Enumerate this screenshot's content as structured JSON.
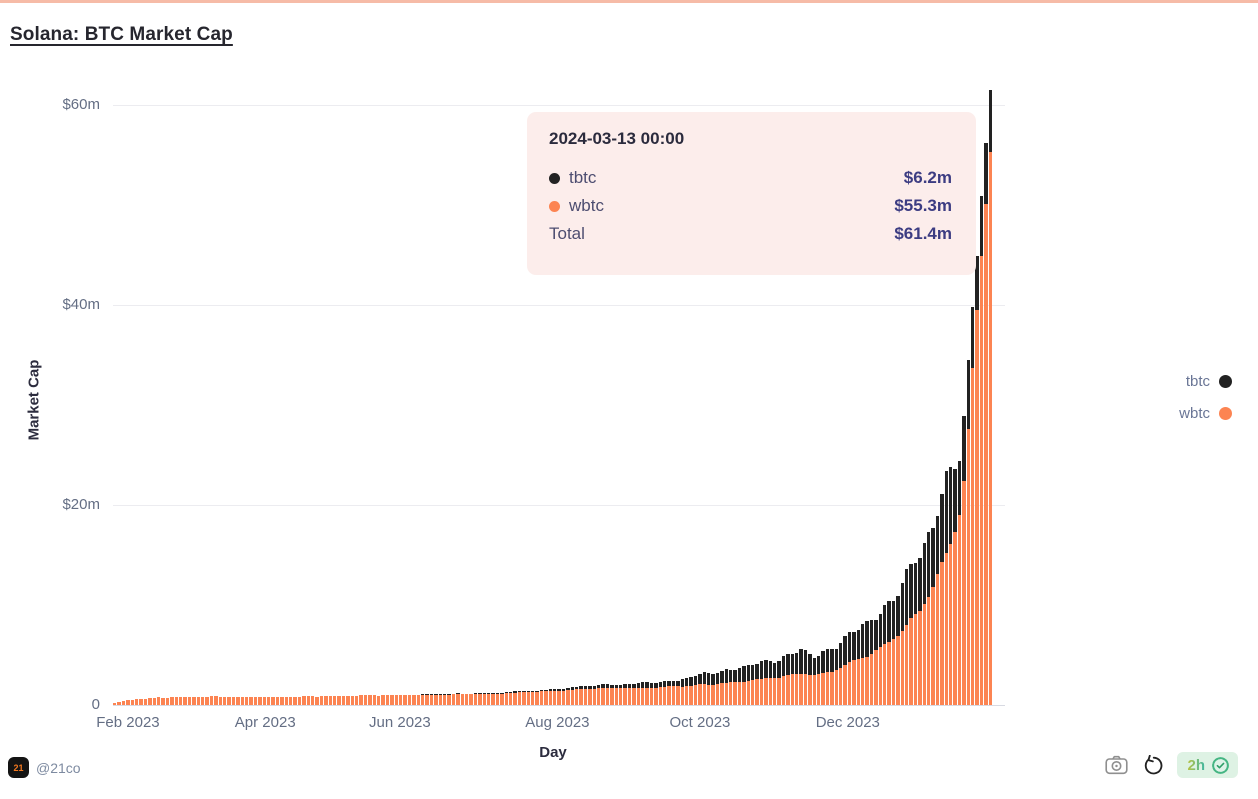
{
  "title": "Solana: BTC Market Cap",
  "chart_data": {
    "type": "bar",
    "stacked": true,
    "title": "Solana: BTC Market Cap",
    "xlabel": "Day",
    "ylabel": "Market Cap",
    "ylim": [
      0,
      60
    ],
    "grid": true,
    "legend_position": "right",
    "y_ticks": [
      {
        "label": "$60m",
        "value": 60
      },
      {
        "label": "$40m",
        "value": 40
      },
      {
        "label": "$20m",
        "value": 20
      },
      {
        "label": "0",
        "value": 0
      }
    ],
    "x_ticks": [
      {
        "label": "Feb 2023",
        "f": 0.017
      },
      {
        "label": "Apr 2023",
        "f": 0.173
      },
      {
        "label": "Jun 2023",
        "f": 0.326
      },
      {
        "label": "Aug 2023",
        "f": 0.505
      },
      {
        "label": "Oct 2023",
        "f": 0.667
      },
      {
        "label": "Dec 2023",
        "f": 0.835
      }
    ],
    "series": [
      {
        "name": "tbtc",
        "color": "#222222"
      },
      {
        "name": "wbtc",
        "color": "#fc8452"
      }
    ],
    "unit": "$m market cap",
    "anchors": [
      {
        "f": 0.0,
        "date": "2023-01-28",
        "wbtc": 0.25,
        "tbtc": 0
      },
      {
        "f": 0.02,
        "date": "2023-02-01",
        "wbtc": 0.55,
        "tbtc": 0
      },
      {
        "f": 0.05,
        "date": "2023-02-12",
        "wbtc": 0.75,
        "tbtc": 0
      },
      {
        "f": 0.1,
        "date": "2023-03-05",
        "wbtc": 0.85,
        "tbtc": 0
      },
      {
        "f": 0.17,
        "date": "2023-04-01",
        "wbtc": 0.8,
        "tbtc": 0
      },
      {
        "f": 0.22,
        "date": "2023-04-20",
        "wbtc": 0.85,
        "tbtc": 0
      },
      {
        "f": 0.28,
        "date": "2023-05-15",
        "wbtc": 0.95,
        "tbtc": 0
      },
      {
        "f": 0.33,
        "date": "2023-06-01",
        "wbtc": 1.0,
        "tbtc": 0
      },
      {
        "f": 0.38,
        "date": "2023-06-20",
        "wbtc": 1.05,
        "tbtc": 0.05
      },
      {
        "f": 0.44,
        "date": "2023-07-12",
        "wbtc": 1.15,
        "tbtc": 0.1
      },
      {
        "f": 0.5,
        "date": "2023-08-01",
        "wbtc": 1.4,
        "tbtc": 0.15
      },
      {
        "f": 0.55,
        "date": "2023-08-18",
        "wbtc": 1.7,
        "tbtc": 0.3
      },
      {
        "f": 0.6,
        "date": "2023-09-05",
        "wbtc": 1.7,
        "tbtc": 0.45
      },
      {
        "f": 0.64,
        "date": "2023-09-20",
        "wbtc": 1.85,
        "tbtc": 0.6
      },
      {
        "f": 0.667,
        "date": "2023-10-01",
        "wbtc": 2.0,
        "tbtc": 1.0
      },
      {
        "f": 0.7,
        "date": "2023-10-12",
        "wbtc": 2.2,
        "tbtc": 1.3
      },
      {
        "f": 0.73,
        "date": "2023-10-24",
        "wbtc": 2.5,
        "tbtc": 1.5
      },
      {
        "f": 0.76,
        "date": "2023-11-01",
        "wbtc": 2.8,
        "tbtc": 1.9
      },
      {
        "f": 0.785,
        "date": "2023-11-10",
        "wbtc": 3.2,
        "tbtc": 2.3
      },
      {
        "f": 0.8,
        "date": "2023-11-16",
        "wbtc": 3.0,
        "tbtc": 1.7
      },
      {
        "f": 0.82,
        "date": "2023-11-24",
        "wbtc": 3.4,
        "tbtc": 2.5
      },
      {
        "f": 0.835,
        "date": "2023-12-01",
        "wbtc": 4.0,
        "tbtc": 2.7
      },
      {
        "f": 0.86,
        "date": "2023-12-12",
        "wbtc": 5.0,
        "tbtc": 3.2
      },
      {
        "f": 0.88,
        "date": "2023-12-22",
        "wbtc": 6.0,
        "tbtc": 3.8
      },
      {
        "f": 0.9,
        "date": "2024-01-01",
        "wbtc": 7.5,
        "tbtc": 4.6
      },
      {
        "f": 0.92,
        "date": "2024-01-12",
        "wbtc": 9.5,
        "tbtc": 5.5
      },
      {
        "f": 0.935,
        "date": "2024-01-20",
        "wbtc": 12.0,
        "tbtc": 6.5
      },
      {
        "f": 0.95,
        "date": "2024-01-28",
        "wbtc": 15.0,
        "tbtc": 7.6
      },
      {
        "f": 0.958,
        "date": "2024-02-03",
        "wbtc": 17.0,
        "tbtc": 7.0
      },
      {
        "f": 0.965,
        "date": "2024-02-10",
        "wbtc": 19.5,
        "tbtc": 5.5
      },
      {
        "f": 0.972,
        "date": "2024-02-17",
        "wbtc": 24.0,
        "tbtc": 6.0
      },
      {
        "f": 0.98,
        "date": "2024-02-25",
        "wbtc": 33.0,
        "tbtc": 6.0
      },
      {
        "f": 0.99,
        "date": "2024-03-05",
        "wbtc": 45.0,
        "tbtc": 6.0
      },
      {
        "f": 1.0,
        "date": "2024-03-13",
        "wbtc": 55.3,
        "tbtc": 6.2
      }
    ]
  },
  "tooltip": {
    "title": "2024-03-13 00:00",
    "rows": [
      {
        "name": "tbtc",
        "color": "#222222",
        "value": "$6.2m"
      },
      {
        "name": "wbtc",
        "color": "#fc8452",
        "value": "$55.3m"
      },
      {
        "name": "Total",
        "color": "",
        "value": "$61.4m"
      }
    ]
  },
  "legend": [
    {
      "label": "tbtc",
      "color": "#222222"
    },
    {
      "label": "wbtc",
      "color": "#fc8452"
    }
  ],
  "footer": {
    "logo_text": "21",
    "handle": "@21co",
    "badge_time": "2h",
    "icons": [
      "camera-icon",
      "reset-icon",
      "verified-check-icon"
    ]
  },
  "colors": {
    "accent_bar_top": "#f6bba7",
    "wbtc": "#fc8452",
    "tbtc": "#222222",
    "tooltip_bg": "#fcedeb",
    "badge_bg": "#def2e4",
    "badge_green": "#45b583"
  }
}
